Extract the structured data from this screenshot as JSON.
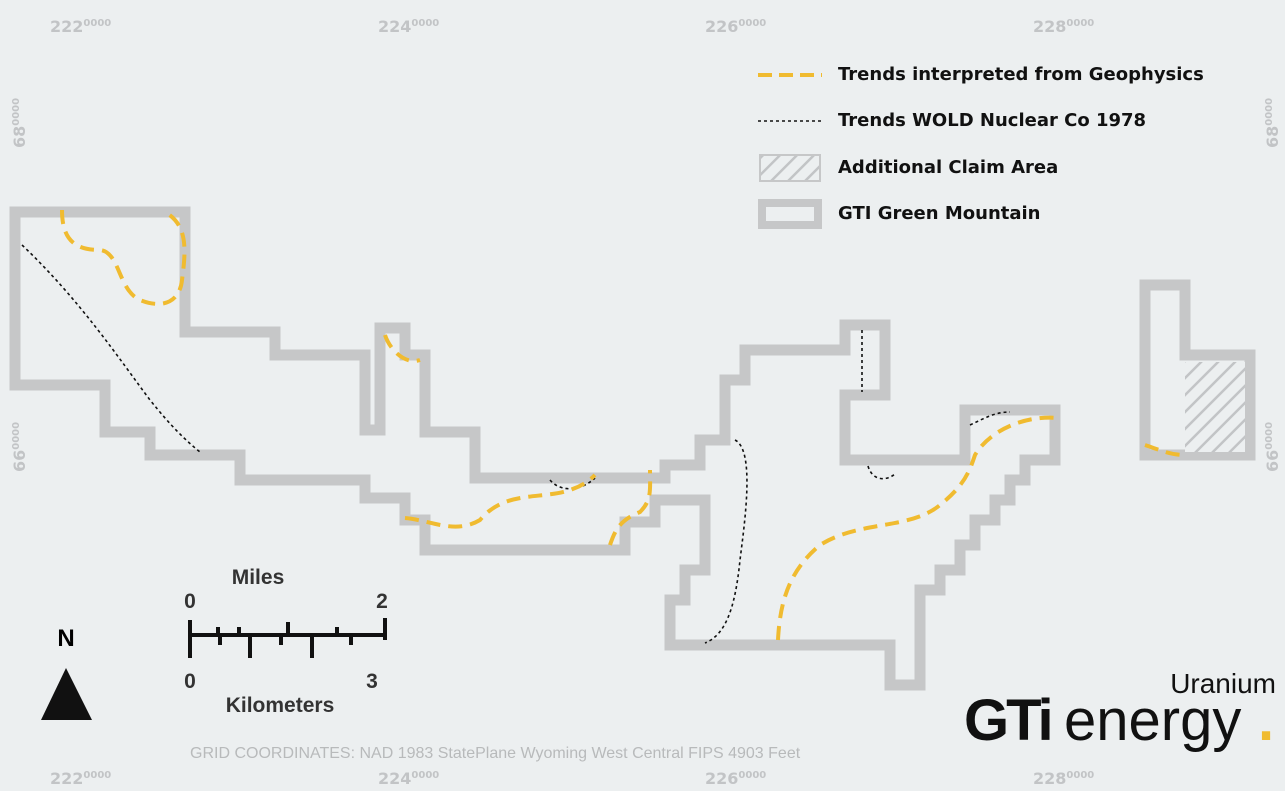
{
  "grid": {
    "top": [
      {
        "main": "222",
        "sup": "0000"
      },
      {
        "main": "224",
        "sup": "0000"
      },
      {
        "main": "226",
        "sup": "0000"
      },
      {
        "main": "228",
        "sup": "0000"
      }
    ],
    "bottom": [
      {
        "main": "222",
        "sup": "0000"
      },
      {
        "main": "224",
        "sup": "0000"
      },
      {
        "main": "226",
        "sup": "0000"
      },
      {
        "main": "228",
        "sup": "0000"
      }
    ],
    "left": [
      {
        "main": "68",
        "sup": "0000"
      },
      {
        "main": "66",
        "sup": "0000"
      }
    ],
    "right": [
      {
        "main": "68",
        "sup": "0000"
      },
      {
        "main": "66",
        "sup": "0000"
      }
    ]
  },
  "legend": {
    "items": [
      "Trends interpreted from Geophysics",
      "Trends WOLD Nuclear Co 1978",
      "Additional Claim Area",
      "GTI Green Mountain"
    ]
  },
  "scale": {
    "top_unit": "Miles",
    "top_start": "0",
    "top_end": "2",
    "bottom_unit": "Kilometers",
    "bottom_start": "0",
    "bottom_end": "3"
  },
  "north": "N",
  "footer": "GRID COORDINATES: NAD 1983 StatePlane Wyoming West Central FIPS 4903 Feet",
  "logo": {
    "mark": "GTi",
    "word": "energy",
    "sub": "Uranium",
    "dot": "."
  }
}
